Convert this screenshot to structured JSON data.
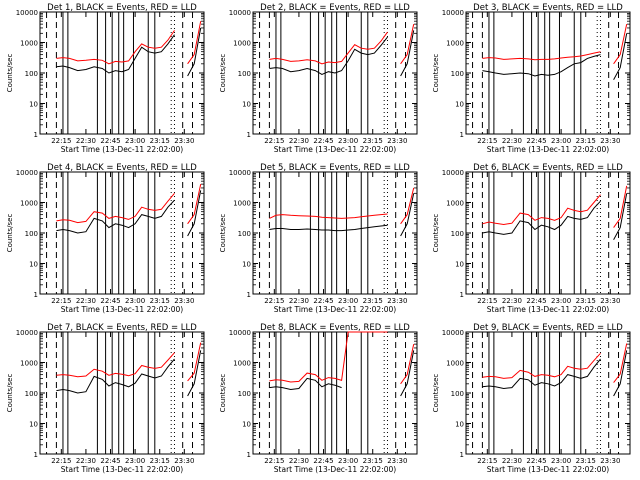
{
  "chart_data": {
    "type": "line",
    "layout": "3x3 grid of panels",
    "y_scale": "log",
    "ylim": [
      1,
      10000
    ],
    "xlim": [
      "22:02",
      "23:42"
    ],
    "grid": false,
    "ylabel": "Counts/sec",
    "xlabel": "Start Time (13-Dec-11 22:02:00)",
    "yticks": [
      "1",
      "10",
      "100",
      "1000",
      "10000"
    ],
    "xticks": [
      "22:15",
      "22:30",
      "22:45",
      "23:00",
      "23:15",
      "23:30"
    ],
    "colors": {
      "events": "#000000",
      "lld": "#ff0000"
    },
    "panels": [
      {
        "title": "Det 1, BLACK = Events, RED = LLD",
        "x": [
          "22:12",
          "22:16",
          "22:20",
          "22:25",
          "22:30",
          "22:35",
          "22:40",
          "22:44",
          "22:48",
          "22:52",
          "22:56",
          "23:00",
          "23:04",
          "23:08",
          "23:12",
          "23:16",
          "23:20",
          "23:24",
          "23:28",
          "23:32",
          "23:36",
          "23:40"
        ],
        "series": [
          {
            "values": [
              160,
              170,
              150,
              120,
              130,
              160,
              140,
              100,
              120,
              110,
              130,
              300,
              700,
              500,
              450,
              500,
              900,
              1800,
              null,
              80,
              200,
              3000
            ]
          },
          {
            "values": [
              300,
              320,
              300,
              250,
              260,
              280,
              260,
              200,
              240,
              230,
              250,
              500,
              900,
              700,
              650,
              700,
              1200,
              2500,
              null,
              200,
              400,
              5000
            ]
          }
        ]
      },
      {
        "title": "Det 2, BLACK = Events, RED = LLD",
        "x": [
          "22:12",
          "22:16",
          "22:20",
          "22:25",
          "22:30",
          "22:35",
          "22:40",
          "22:44",
          "22:48",
          "22:52",
          "22:56",
          "23:00",
          "23:04",
          "23:08",
          "23:12",
          "23:16",
          "23:20",
          "23:24",
          "23:28",
          "23:32",
          "23:36",
          "23:40"
        ],
        "series": [
          {
            "values": [
              140,
              150,
              140,
              110,
              120,
              140,
              120,
              90,
              110,
              100,
              120,
              250,
              600,
              450,
              400,
              450,
              800,
              1500,
              null,
              80,
              200,
              2500
            ]
          },
          {
            "values": [
              280,
              300,
              280,
              240,
              250,
              270,
              250,
              200,
              230,
              220,
              240,
              450,
              850,
              650,
              600,
              650,
              1100,
              2200,
              null,
              200,
              400,
              4000
            ]
          }
        ]
      },
      {
        "title": "Det 3, BLACK = Events, RED = LLD",
        "x": [
          "22:12",
          "22:16",
          "22:20",
          "22:25",
          "22:30",
          "22:35",
          "22:40",
          "22:44",
          "22:48",
          "22:52",
          "22:56",
          "23:00",
          "23:04",
          "23:08",
          "23:12",
          "23:16",
          "23:20",
          "23:24",
          "23:28",
          "23:32",
          "23:36",
          "23:40"
        ],
        "series": [
          {
            "values": [
              120,
              110,
              100,
              90,
              95,
              100,
              95,
              80,
              90,
              85,
              90,
              110,
              150,
              200,
              220,
              300,
              350,
              400,
              null,
              60,
              150,
              2000
            ]
          },
          {
            "values": [
              300,
              320,
              310,
              280,
              290,
              300,
              290,
              270,
              280,
              280,
              290,
              310,
              330,
              340,
              360,
              400,
              450,
              500,
              null,
              200,
              400,
              4000
            ]
          }
        ]
      },
      {
        "title": "Det 4, BLACK = Events, RED = LLD",
        "x": [
          "22:12",
          "22:16",
          "22:20",
          "22:25",
          "22:30",
          "22:35",
          "22:40",
          "22:44",
          "22:48",
          "22:52",
          "22:56",
          "23:00",
          "23:04",
          "23:08",
          "23:12",
          "23:16",
          "23:20",
          "23:24",
          "23:28",
          "23:32",
          "23:36",
          "23:40"
        ],
        "series": [
          {
            "values": [
              120,
              130,
              120,
              100,
              110,
              300,
              250,
              150,
              200,
              180,
              150,
              200,
              400,
              350,
              300,
              350,
              700,
              1200,
              null,
              80,
              200,
              2500
            ]
          },
          {
            "values": [
              250,
              270,
              260,
              220,
              240,
              500,
              450,
              300,
              350,
              320,
              280,
              350,
              700,
              600,
              550,
              600,
              1100,
              2000,
              null,
              200,
              400,
              4000
            ]
          }
        ]
      },
      {
        "title": "Det 5, BLACK = Events, RED = LLD",
        "x": [
          "22:12",
          "22:16",
          "22:20",
          "22:25",
          "22:30",
          "22:35",
          "22:40",
          "22:44",
          "22:48",
          "22:52",
          "22:56",
          "23:00",
          "23:04",
          "23:08",
          "23:12",
          "23:16",
          "23:20",
          "23:24",
          "23:28",
          "23:32",
          "23:36",
          "23:40"
        ],
        "series": [
          {
            "values": [
              130,
              140,
              140,
              130,
              130,
              135,
              130,
              125,
              125,
              120,
              120,
              125,
              130,
              140,
              150,
              160,
              170,
              180,
              null,
              80,
              200,
              2000
            ]
          },
          {
            "values": [
              300,
              380,
              400,
              380,
              370,
              360,
              350,
              330,
              320,
              310,
              300,
              310,
              320,
              340,
              360,
              380,
              400,
              420,
              null,
              200,
              400,
              3000
            ]
          }
        ]
      },
      {
        "title": "Det 6, BLACK = Events, RED = LLD",
        "x": [
          "22:12",
          "22:16",
          "22:20",
          "22:25",
          "22:30",
          "22:35",
          "22:40",
          "22:44",
          "22:48",
          "22:52",
          "22:56",
          "23:00",
          "23:04",
          "23:08",
          "23:12",
          "23:16",
          "23:20",
          "23:24",
          "23:28",
          "23:32",
          "23:36",
          "23:40"
        ],
        "series": [
          {
            "values": [
              100,
              110,
              100,
              90,
              100,
              250,
              220,
              130,
              180,
              160,
              130,
              180,
              350,
              300,
              280,
              320,
              650,
              1100,
              null,
              60,
              150,
              2000
            ]
          },
          {
            "values": [
              200,
              230,
              210,
              190,
              210,
              450,
              400,
              260,
              320,
              300,
              260,
              320,
              650,
              550,
              500,
              560,
              1000,
              1800,
              null,
              150,
              300,
              3500
            ]
          }
        ]
      },
      {
        "title": "Det 7, BLACK = Events, RED = LLD",
        "x": [
          "22:12",
          "22:16",
          "22:20",
          "22:25",
          "22:30",
          "22:35",
          "22:40",
          "22:44",
          "22:48",
          "22:52",
          "22:56",
          "23:00",
          "23:04",
          "23:08",
          "23:12",
          "23:16",
          "23:20",
          "23:24",
          "23:28",
          "23:32",
          "23:36",
          "23:40"
        ],
        "series": [
          {
            "values": [
              120,
              130,
              120,
              100,
              110,
              350,
              280,
              170,
              220,
              190,
              160,
              210,
              420,
              360,
              310,
              360,
              720,
              1300,
              null,
              80,
              200,
              2500
            ]
          },
          {
            "values": [
              380,
              400,
              380,
              340,
              360,
              600,
              520,
              380,
              440,
              410,
              370,
              430,
              800,
              700,
              640,
              700,
              1200,
              2100,
              null,
              250,
              450,
              4500
            ]
          }
        ]
      },
      {
        "title": "Det 8, BLACK = Events, RED = LLD",
        "x": [
          "22:12",
          "22:16",
          "22:20",
          "22:25",
          "22:30",
          "22:35",
          "22:40",
          "22:44",
          "22:48",
          "22:52",
          "22:56",
          "23:00",
          "23:04",
          "23:08",
          "23:12",
          "23:16",
          "23:20",
          "23:24",
          "23:28",
          "23:32",
          "23:36",
          "23:40"
        ],
        "series": [
          {
            "values": [
              150,
              160,
              150,
              130,
              140,
              300,
              260,
              160,
              200,
              180,
              150,
              null,
              null,
              null,
              null,
              null,
              null,
              null,
              null,
              80,
              200,
              2500
            ]
          },
          {
            "values": [
              250,
              270,
              260,
              230,
              240,
              450,
              400,
              260,
              320,
              300,
              260,
              10000,
              10000,
              10000,
              10000,
              10000,
              10000,
              10000,
              null,
              200,
              400,
              4000
            ]
          }
        ]
      },
      {
        "title": "Det 9, BLACK = Events, RED = LLD",
        "x": [
          "22:12",
          "22:16",
          "22:20",
          "22:25",
          "22:30",
          "22:35",
          "22:40",
          "22:44",
          "22:48",
          "22:52",
          "22:56",
          "23:00",
          "23:04",
          "23:08",
          "23:12",
          "23:16",
          "23:20",
          "23:24",
          "23:28",
          "23:32",
          "23:36",
          "23:40"
        ],
        "series": [
          {
            "values": [
              160,
              170,
              160,
              140,
              150,
              300,
              270,
              180,
              220,
              200,
              170,
              220,
              400,
              350,
              300,
              350,
              700,
              1300,
              null,
              80,
              200,
              2500
            ]
          },
          {
            "values": [
              330,
              350,
              340,
              300,
              320,
              550,
              480,
              350,
              400,
              380,
              340,
              400,
              750,
              650,
              600,
              650,
              1150,
              2000,
              null,
              220,
              420,
              4200
            ]
          }
        ]
      }
    ]
  }
}
